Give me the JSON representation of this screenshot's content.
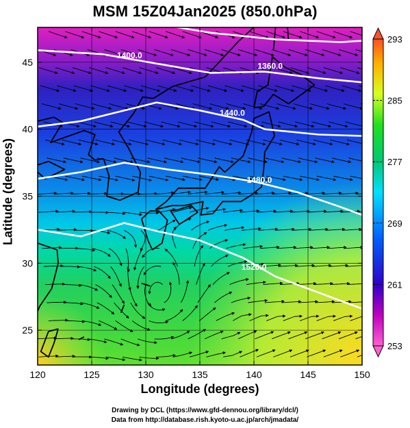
{
  "title": "MSM 15Z04Jan2025 (850.0hPa)",
  "credits": {
    "line1": "Drawing by DCL (https://www.gfd-dennou.org/library/dcl/)",
    "line2": "Data from http://database.rish.kyoto-u.ac.jp/arch/jmadata/"
  },
  "chart_data": {
    "type": "heatmap",
    "title": "MSM 15Z04Jan2025 (850.0hPa)",
    "xlabel": "Longitude (degrees)",
    "ylabel": "Latitude  (degrees)",
    "xlim": [
      120,
      150
    ],
    "ylim": [
      22.4,
      47.6
    ],
    "x_ticks": [
      120,
      125,
      130,
      135,
      140,
      145,
      150
    ],
    "y_ticks": [
      25,
      30,
      35,
      40,
      45
    ],
    "grid": true,
    "colorbar": {
      "range": [
        253,
        293
      ],
      "ticks": [
        253,
        261,
        269,
        277,
        285,
        293
      ],
      "colors": [
        "#ff4fc8",
        "#c000c0",
        "#3000c8",
        "#0050ff",
        "#00e0ff",
        "#00c060",
        "#20e020",
        "#e8ff20",
        "#ffb000",
        "#ff4020"
      ]
    },
    "field_colors": {
      "north": "#e020c0",
      "upper": "#2a1cc8",
      "mid": "#0090e8",
      "lower": "#00d0a0",
      "south": "#60e020",
      "southeast": "#ffd020"
    },
    "contours": [
      {
        "level": "1360.0",
        "label_lon": 141.5,
        "label_lat": 44.5,
        "points": [
          [
            130,
            48.0
          ],
          [
            136,
            47.2
          ],
          [
            142,
            46.7
          ],
          [
            148,
            46.5
          ],
          [
            150,
            46.6
          ]
        ]
      },
      {
        "level": "1400.0",
        "label_lon": 128.5,
        "label_lat": 45.3,
        "points": [
          [
            120,
            45.9
          ],
          [
            126,
            45.6
          ],
          [
            131,
            44.9
          ],
          [
            136,
            44.2
          ],
          [
            141,
            44.3
          ],
          [
            146,
            43.8
          ],
          [
            150,
            43.5
          ]
        ]
      },
      {
        "level": "1440.0",
        "label_lon": 138.0,
        "label_lat": 41.0,
        "points": [
          [
            120,
            40.2
          ],
          [
            124,
            40.6
          ],
          [
            127,
            41.2
          ],
          [
            131,
            42.0
          ],
          [
            135,
            41.4
          ],
          [
            139,
            40.7
          ],
          [
            141,
            40.0
          ],
          [
            146,
            39.6
          ],
          [
            150,
            39.5
          ]
        ]
      },
      {
        "level": "1480.0",
        "label_lon": 140.5,
        "label_lat": 36.0,
        "points": [
          [
            120,
            36.3
          ],
          [
            124,
            36.8
          ],
          [
            128,
            37.5
          ],
          [
            132,
            37.0
          ],
          [
            136,
            36.6
          ],
          [
            140,
            36.1
          ],
          [
            144,
            35.3
          ],
          [
            148,
            34.2
          ],
          [
            150,
            33.6
          ]
        ]
      },
      {
        "level": "1520.0",
        "label_lon": 140.0,
        "label_lat": 29.5,
        "points": [
          [
            120,
            32.5
          ],
          [
            124,
            32.0
          ],
          [
            128,
            33.0
          ],
          [
            131,
            32.4
          ],
          [
            135,
            31.7
          ],
          [
            139,
            30.4
          ],
          [
            142,
            29.0
          ],
          [
            146,
            27.8
          ],
          [
            150,
            26.6
          ]
        ]
      }
    ],
    "wind_flow": [
      {
        "lon": 120,
        "lat": 47,
        "u": 1.0,
        "v": -0.1
      },
      {
        "lon": 130,
        "lat": 45,
        "u": 1.0,
        "v": -0.2
      },
      {
        "lon": 140,
        "lat": 43,
        "u": 1.0,
        "v": -0.3
      },
      {
        "lon": 125,
        "lat": 35,
        "u": 1.0,
        "v": 0.0
      },
      {
        "lon": 132,
        "lat": 33,
        "u": 1.0,
        "v": 0.1
      },
      {
        "lon": 130,
        "lat": 27,
        "u": 0.0,
        "v": 1.0
      },
      {
        "lon": 145,
        "lat": 25,
        "u": 1.0,
        "v": 0.3
      },
      {
        "lon": 122,
        "lat": 25,
        "u": 1.0,
        "v": 0.2
      }
    ]
  }
}
